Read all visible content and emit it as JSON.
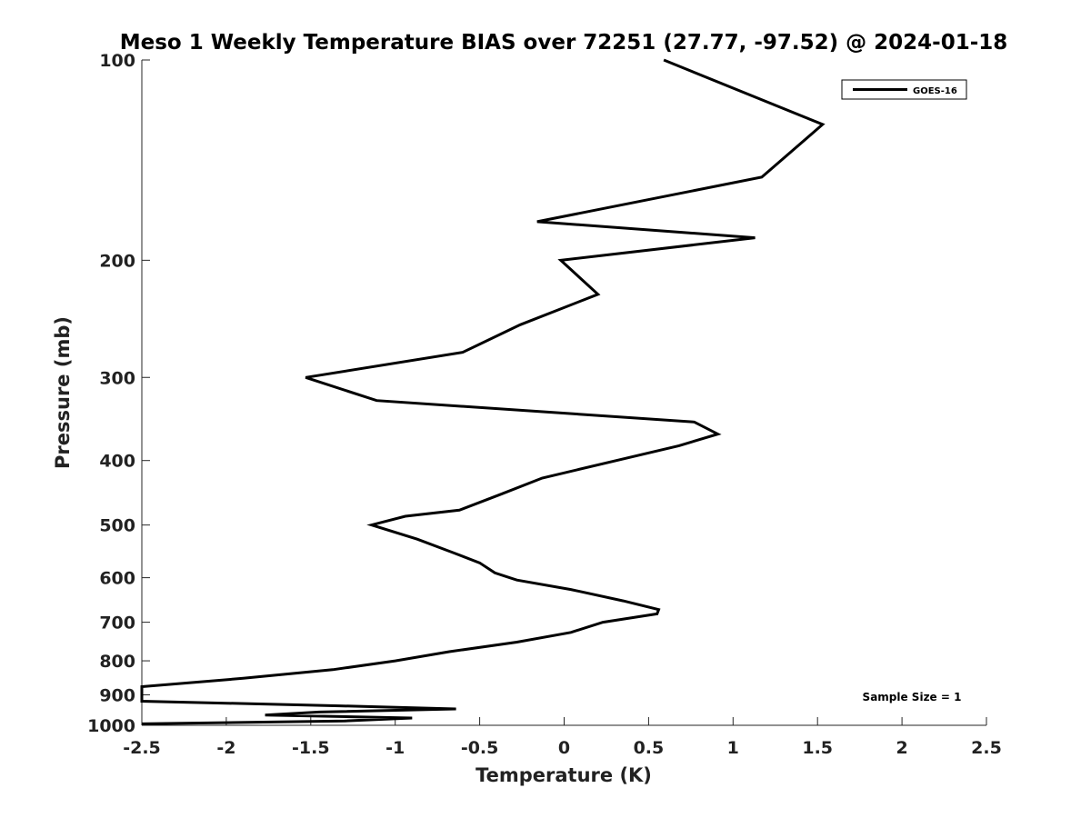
{
  "chart_data": {
    "type": "line",
    "title": "Meso 1 Weekly Temperature BIAS over 72251 (27.77, -97.52) @ 2024-01-18",
    "xlabel": "Temperature (K)",
    "ylabel": "Pressure (mb)",
    "xlim": [
      -2.5,
      2.5
    ],
    "ylim": [
      100,
      1000
    ],
    "y_scale": "log",
    "y_inverted": true,
    "xticks": [
      -2.5,
      -2,
      -1.5,
      -1,
      -0.5,
      0,
      0.5,
      1,
      1.5,
      2,
      2.5
    ],
    "xtick_labels": [
      "-2.5",
      "-2",
      "-1.5",
      "-1",
      "-0.5",
      "0",
      "0.5",
      "1",
      "1.5",
      "2",
      "2.5"
    ],
    "yticks": [
      100,
      200,
      300,
      400,
      500,
      600,
      700,
      800,
      900,
      1000
    ],
    "ytick_labels": [
      "100",
      "200",
      "300",
      "400",
      "500",
      "600",
      "700",
      "800",
      "900",
      "1000"
    ],
    "grid": false,
    "legend_position": "top-right",
    "series_color": "#000000",
    "annotation": "Sample Size = 1",
    "series": [
      {
        "name": "GOES-16",
        "points": [
          {
            "x": 0.59,
            "p": 100
          },
          {
            "x": 1.53,
            "p": 125
          },
          {
            "x": 1.17,
            "p": 150
          },
          {
            "x": -0.16,
            "p": 175
          },
          {
            "x": 1.13,
            "p": 185
          },
          {
            "x": -0.02,
            "p": 200
          },
          {
            "x": 0.2,
            "p": 225
          },
          {
            "x": -0.26,
            "p": 250
          },
          {
            "x": -0.6,
            "p": 275
          },
          {
            "x": -1.53,
            "p": 300
          },
          {
            "x": -1.11,
            "p": 325
          },
          {
            "x": 0.77,
            "p": 350
          },
          {
            "x": 0.91,
            "p": 365
          },
          {
            "x": 0.68,
            "p": 380
          },
          {
            "x": -0.13,
            "p": 425
          },
          {
            "x": -0.38,
            "p": 450
          },
          {
            "x": -0.62,
            "p": 475
          },
          {
            "x": -0.94,
            "p": 485
          },
          {
            "x": -1.14,
            "p": 500
          },
          {
            "x": -0.87,
            "p": 525
          },
          {
            "x": -0.66,
            "p": 550
          },
          {
            "x": -0.5,
            "p": 570
          },
          {
            "x": -0.41,
            "p": 590
          },
          {
            "x": -0.28,
            "p": 605
          },
          {
            "x": 0.04,
            "p": 625
          },
          {
            "x": 0.35,
            "p": 650
          },
          {
            "x": 0.56,
            "p": 670
          },
          {
            "x": 0.55,
            "p": 680
          },
          {
            "x": 0.23,
            "p": 700
          },
          {
            "x": 0.04,
            "p": 725
          },
          {
            "x": -0.28,
            "p": 750
          },
          {
            "x": -0.68,
            "p": 775
          },
          {
            "x": -1.0,
            "p": 800
          },
          {
            "x": -1.37,
            "p": 825
          },
          {
            "x": -1.9,
            "p": 850
          },
          {
            "x": -2.5,
            "p": 875
          },
          {
            "x": -2.5,
            "p": 920
          },
          {
            "x": -1.33,
            "p": 935
          },
          {
            "x": -0.64,
            "p": 945
          },
          {
            "x": -1.45,
            "p": 955
          },
          {
            "x": -1.77,
            "p": 965
          },
          {
            "x": -0.9,
            "p": 975
          },
          {
            "x": -1.3,
            "p": 985
          },
          {
            "x": -2.5,
            "p": 995
          }
        ]
      }
    ]
  }
}
